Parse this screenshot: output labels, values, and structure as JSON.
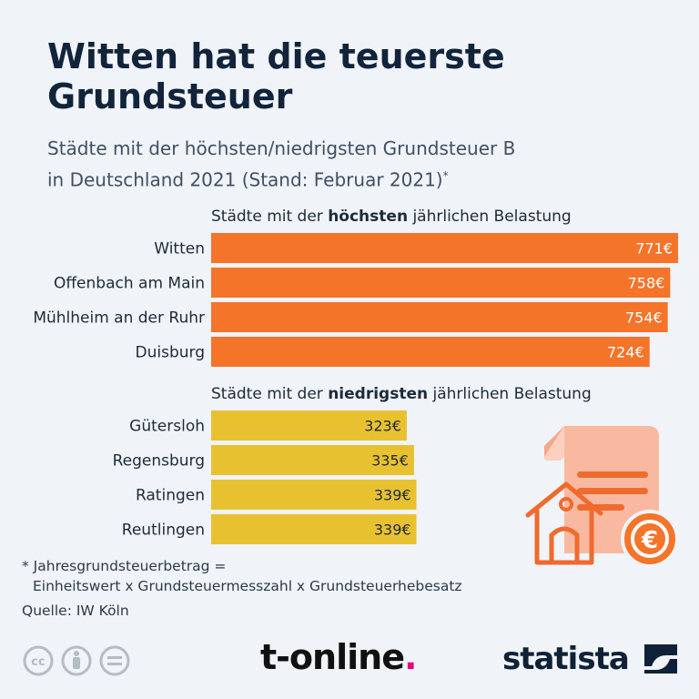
{
  "title_line1": "Witten hat die teuerste",
  "title_line2": "Grundsteuer",
  "subtitle_line1": "Städte mit der höchsten/niedrigsten Grundsteuer B",
  "subtitle_line2": "in Deutschland 2021 (Stand: Februar 2021)",
  "subtitle_marker": "*",
  "sections": {
    "high": {
      "prefix": "Städte mit der ",
      "bold": "höchsten",
      "suffix": " jährlichen Belastung"
    },
    "low": {
      "prefix": "Städte mit der ",
      "bold": "niedrigsten",
      "suffix": " jährlichen Belastung"
    }
  },
  "footnote_line1": "* Jahresgrundsteuerbetrag =",
  "footnote_line2": "Einheitswert x Grundsteuermesszahl x Grundsteuerhebesatz",
  "source": "Quelle: IW Köln",
  "brand_tonline": "t-online",
  "brand_tonline_dot": ".",
  "brand_statista": "statista",
  "chart_data": {
    "type": "bar",
    "orientation": "horizontal",
    "unit": "€",
    "groups": [
      {
        "name": "höchsten",
        "color": "#f4742a",
        "categories": [
          "Witten",
          "Offenbach am Main",
          "Mühlheim an der Ruhr",
          "Duisburg"
        ],
        "values": [
          771,
          758,
          754,
          724
        ],
        "labels": [
          "771€",
          "758€",
          "754€",
          "724€"
        ]
      },
      {
        "name": "niedrigsten",
        "color": "#e8c130",
        "categories": [
          "Gütersloh",
          "Regensburg",
          "Ratingen",
          "Reutlingen"
        ],
        "values": [
          323,
          335,
          339,
          339
        ],
        "labels": [
          "323€",
          "335€",
          "339€",
          "339€"
        ]
      }
    ],
    "xlim": [
      0,
      771
    ]
  }
}
